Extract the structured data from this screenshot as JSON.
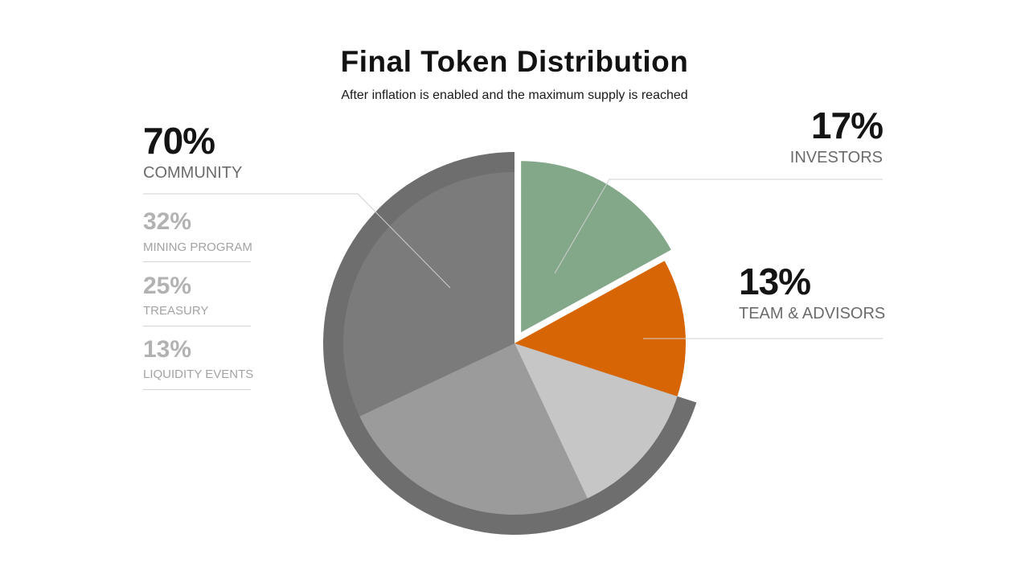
{
  "chart_data": {
    "type": "pie",
    "title": "Final Token Distribution",
    "subtitle": "After inflation is enabled and the maximum supply is reached",
    "unit": "%",
    "slices": [
      {
        "label": "INVESTORS",
        "value": 17,
        "color": "#82a889",
        "exploded": true
      },
      {
        "label": "TEAM & ADVISORS",
        "value": 13,
        "color": "#d86503"
      },
      {
        "label": "LIQUIDITY EVENTS",
        "value": 13,
        "color": "#c6c6c6",
        "group": "COMMUNITY"
      },
      {
        "label": "TREASURY",
        "value": 25,
        "color": "#9b9b9b",
        "group": "COMMUNITY"
      },
      {
        "label": "MINING PROGRAM",
        "value": 32,
        "color": "#7b7b7b",
        "group": "COMMUNITY"
      }
    ],
    "groups": [
      {
        "label": "COMMUNITY",
        "value": 70,
        "ring_color": "#6e6e6e"
      }
    ]
  },
  "labels": {
    "community": {
      "pct": "70%",
      "name": "COMMUNITY"
    },
    "investors": {
      "pct": "17%",
      "name": "INVESTORS"
    },
    "team": {
      "pct": "13%",
      "name": "TEAM & ADVISORS"
    },
    "breakdown": [
      {
        "pct": "32%",
        "name": "MINING PROGRAM"
      },
      {
        "pct": "25%",
        "name": "TREASURY"
      },
      {
        "pct": "13%",
        "name": "LIQUIDITY EVENTS"
      }
    ]
  }
}
